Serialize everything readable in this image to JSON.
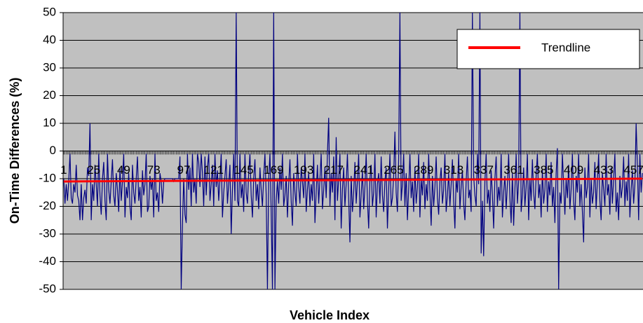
{
  "chart_data": {
    "type": "line",
    "y_label": "On-Time Differences (%)",
    "x_label": "Vehicle Index",
    "ylim": [
      -50,
      50
    ],
    "yticks": [
      -50,
      -40,
      -30,
      -20,
      -10,
      0,
      10,
      20,
      30,
      40,
      50
    ],
    "grid": true,
    "legend": "top-right",
    "categories": [
      "1",
      null,
      null,
      null,
      null,
      null,
      null,
      null,
      null,
      null,
      null,
      null,
      null,
      null,
      null,
      null,
      null,
      null,
      null,
      null,
      null,
      null,
      null,
      null,
      "25",
      null,
      null,
      null,
      null,
      null,
      null,
      null,
      null,
      null,
      null,
      null,
      null,
      null,
      null,
      null,
      null,
      null,
      null,
      null,
      null,
      null,
      null,
      null,
      "49",
      null,
      null,
      null,
      null,
      null,
      null,
      null,
      null,
      null,
      null,
      null,
      null,
      null,
      null,
      null,
      null,
      null,
      null,
      null,
      null,
      null,
      null,
      null,
      "73",
      null,
      null,
      null,
      null,
      null,
      null,
      null,
      null,
      null,
      null,
      null,
      null,
      null,
      null,
      null,
      null,
      null,
      null,
      null,
      null,
      null,
      null,
      null,
      "97",
      null,
      null,
      null,
      null,
      null,
      null,
      null,
      null,
      null,
      null,
      null,
      null,
      null,
      null,
      null,
      null,
      null,
      null,
      null,
      null,
      null,
      null,
      null,
      "121",
      null,
      null,
      null,
      null,
      null,
      null,
      null,
      null,
      null,
      null,
      null,
      null,
      null,
      null,
      null,
      null,
      null,
      null,
      null,
      null,
      null,
      null,
      null,
      "145",
      null,
      null,
      null,
      null,
      null,
      null,
      null,
      null,
      null,
      null,
      null,
      null,
      null,
      null,
      null,
      null,
      null,
      null,
      null,
      null,
      null,
      null,
      null,
      "169",
      null,
      null,
      null,
      null,
      null,
      null,
      null,
      null,
      null,
      null,
      null,
      null,
      null,
      null,
      null,
      null,
      null,
      null,
      null,
      null,
      null,
      null,
      null,
      "193",
      null,
      null,
      null,
      null,
      null,
      null,
      null,
      null,
      null,
      null,
      null,
      null,
      null,
      null,
      null,
      null,
      null,
      null,
      null,
      null,
      null,
      null,
      null,
      "217",
      null,
      null,
      null,
      null,
      null,
      null,
      null,
      null,
      null,
      null,
      null,
      null,
      null,
      null,
      null,
      null,
      null,
      null,
      null,
      null,
      null,
      null,
      null,
      "241",
      null,
      null,
      null,
      null,
      null,
      null,
      null,
      null,
      null,
      null,
      null,
      null,
      null,
      null,
      null,
      null,
      null,
      null,
      null,
      null,
      null,
      null,
      null,
      "265",
      null,
      null,
      null,
      null,
      null,
      null,
      null,
      null,
      null,
      null,
      null,
      null,
      null,
      null,
      null,
      null,
      null,
      null,
      null,
      null,
      null,
      null,
      null,
      "289",
      null,
      null,
      null,
      null,
      null,
      null,
      null,
      null,
      null,
      null,
      null,
      null,
      null,
      null,
      null,
      null,
      null,
      null,
      null,
      null,
      null,
      null,
      null,
      "313",
      null,
      null,
      null,
      null,
      null,
      null,
      null,
      null,
      null,
      null,
      null,
      null,
      null,
      null,
      null,
      null,
      null,
      null,
      null,
      null,
      null,
      null,
      null,
      "337",
      null,
      null,
      null,
      null,
      null,
      null,
      null,
      null,
      null,
      null,
      null,
      null,
      null,
      null,
      null,
      null,
      null,
      null,
      null,
      null,
      null,
      null,
      null,
      "361",
      null,
      null,
      null,
      null,
      null,
      null,
      null,
      null,
      null,
      null,
      null,
      null,
      null,
      null,
      null,
      null,
      null,
      null,
      null,
      null,
      null,
      null,
      null,
      "385",
      null,
      null,
      null,
      null,
      null,
      null,
      null,
      null,
      null,
      null,
      null,
      null,
      null,
      null,
      null,
      null,
      null,
      null,
      null,
      null,
      null,
      null,
      null,
      "409",
      null,
      null,
      null,
      null,
      null,
      null,
      null,
      null,
      null,
      null,
      null,
      null,
      null,
      null,
      null,
      null,
      null,
      null,
      null,
      null,
      null,
      null,
      null,
      "433",
      null,
      null,
      null,
      null,
      null,
      null,
      null,
      null,
      null,
      null,
      null,
      null,
      null,
      null,
      null,
      null,
      null,
      null,
      null,
      null,
      null,
      null,
      null,
      "457",
      null,
      null,
      null,
      null,
      null,
      null,
      null
    ],
    "series": [
      {
        "color": "#000080",
        "values": [
          -10,
          -19,
          -12,
          -18,
          -11,
          -1,
          -17,
          -19,
          -12,
          -15,
          -5,
          -16,
          -18,
          -25,
          -12,
          -25,
          -17,
          -14,
          -19,
          -6,
          -9,
          10,
          -25,
          -12,
          -18,
          -5,
          -12,
          -20,
          -1,
          -16,
          -23,
          -10,
          -4,
          -18,
          -25,
          -1,
          -14,
          -19,
          -11,
          -3,
          -16,
          -20,
          -8,
          -14,
          -22,
          -6,
          -18,
          -11,
          -1,
          -24,
          -13,
          -17,
          -8,
          -20,
          -25,
          -5,
          -15,
          -19,
          -10,
          -2,
          -18,
          -13,
          -24,
          -7,
          -16,
          -12,
          -1,
          -22,
          -20,
          -9,
          -14,
          -10,
          -24,
          -1,
          -18,
          -15,
          -22,
          -8,
          -11,
          -19,
          -11,
          -10,
          -10,
          -10,
          -10,
          -10,
          -10,
          -10,
          -11,
          -10,
          -10,
          -10,
          -10,
          -2,
          -50,
          -27,
          -10,
          -23,
          -26,
          -1,
          -14,
          -6,
          -20,
          -1,
          -15,
          -10,
          -19,
          -1,
          -4,
          -13,
          -1,
          -8,
          -20,
          -2,
          -16,
          -6,
          -1,
          -18,
          -12,
          -5,
          -20,
          -1,
          -13,
          -7,
          -18,
          -10,
          -1,
          -24,
          -15,
          -9,
          -3,
          -19,
          -12,
          -5,
          -30,
          -14,
          -1,
          -18,
          50,
          -18,
          -20,
          -1,
          -17,
          -12,
          -22,
          -1,
          -15,
          -19,
          -8,
          -1,
          -16,
          -24,
          -10,
          -3,
          -18,
          -12,
          -21,
          -6,
          -14,
          -20,
          -9,
          -1,
          -16,
          -50,
          -10,
          -1,
          -22,
          -50,
          50,
          -50,
          -18,
          -11,
          -19,
          -6,
          -14,
          -1,
          -20,
          -16,
          -9,
          -24,
          -12,
          -3,
          -18,
          -27,
          -8,
          -15,
          -20,
          -1,
          -13,
          -19,
          -6,
          -11,
          -17,
          -1,
          -22,
          -14,
          -8,
          -20,
          -12,
          -18,
          -1,
          -26,
          -15,
          -5,
          -19,
          -10,
          -1,
          -21,
          -14,
          -6,
          -17,
          -1,
          12,
          -20,
          -8,
          -15,
          -2,
          -25,
          5,
          -18,
          -10,
          -1,
          -28,
          -14,
          -6,
          -20,
          -12,
          -1,
          -17,
          -33,
          -9,
          -22,
          -15,
          -4,
          -19,
          -11,
          -1,
          -24,
          -16,
          -7,
          -21,
          -13,
          -1,
          -18,
          -28,
          -10,
          -5,
          -20,
          -15,
          -1,
          -24,
          -12,
          -8,
          -19,
          -2,
          -16,
          -22,
          -11,
          -6,
          -28,
          -14,
          -1,
          -20,
          -17,
          -9,
          7,
          -15,
          -22,
          -3,
          50,
          -18,
          -12,
          -1,
          -20,
          -8,
          -25,
          -14,
          -1,
          -17,
          -11,
          -22,
          -6,
          -19,
          -13,
          -1,
          -24,
          -10,
          -16,
          -4,
          -21,
          -12,
          -18,
          -1,
          -15,
          -27,
          -9,
          -20,
          -13,
          -2,
          -17,
          -23,
          -11,
          -6,
          -19,
          -14,
          -1,
          -22,
          -16,
          -8,
          -20,
          -12,
          -3,
          -18,
          -28,
          -10,
          -15,
          -1,
          -21,
          -13,
          -7,
          -19,
          -25,
          -11,
          -2,
          -17,
          -14,
          -22,
          50,
          -9,
          -16,
          -20,
          -1,
          -12,
          50,
          -37,
          -18,
          -38,
          -11,
          -1,
          -19,
          -14,
          -22,
          -7,
          -16,
          -28,
          -10,
          -2,
          -20,
          -13,
          -18,
          -1,
          -24,
          -15,
          -9,
          -21,
          -12,
          -1,
          -17,
          -26,
          -8,
          -27,
          -14,
          -1,
          -19,
          -11,
          50,
          -22,
          -16,
          -6,
          -20,
          -13,
          -1,
          -25,
          -10,
          -18,
          -3,
          -15,
          -21,
          -9,
          -1,
          -17,
          -12,
          -24,
          -7,
          -19,
          -14,
          -1,
          -22,
          -11,
          -16,
          -4,
          -20,
          -13,
          -26,
          -8,
          1,
          -50,
          -15,
          -19,
          -1,
          -12,
          -23,
          -10,
          -17,
          -5,
          -21,
          -14,
          -1,
          -18,
          -25,
          -9,
          -15,
          -1,
          -20,
          -12,
          -22,
          -33,
          -6,
          -17,
          -13,
          -1,
          -24,
          -10,
          -19,
          -15,
          -4,
          -21,
          -11,
          -1,
          -18,
          -25,
          -8,
          -14,
          -20,
          -1,
          -16,
          -12,
          -23,
          -6,
          -19,
          -10,
          -1,
          -22,
          -15,
          -25,
          -9,
          -17,
          -13,
          -2,
          -20,
          -11,
          -18,
          -1,
          -24,
          -14,
          -7,
          -19,
          -12,
          10,
          -5,
          -25,
          -1,
          -15,
          -8
        ]
      }
    ],
    "trendline": {
      "name": "Trendline",
      "color": "#ff0000",
      "start": -11,
      "end": -10
    }
  }
}
